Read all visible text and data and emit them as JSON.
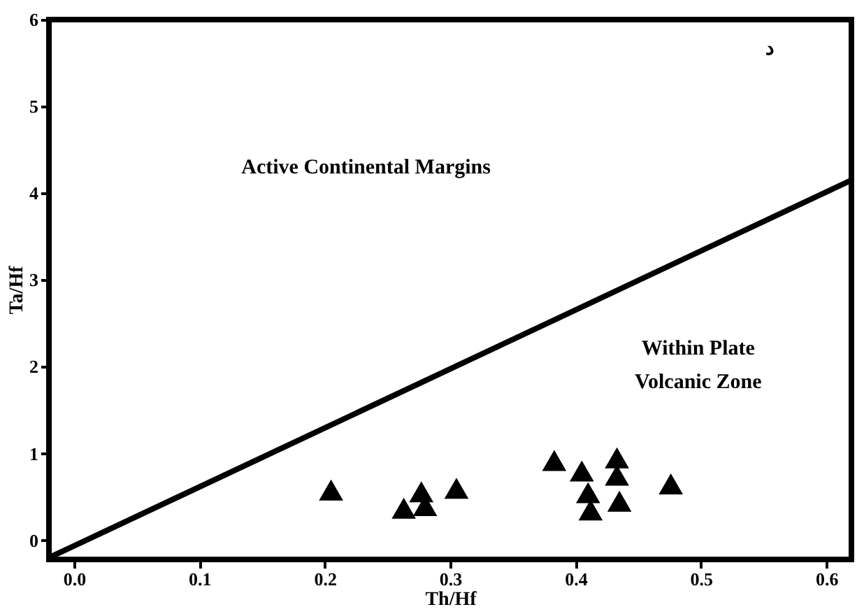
{
  "chart_data": {
    "type": "scatter",
    "xlabel": "Th/Hf",
    "ylabel": "Ta/Hf",
    "xlim": [
      -0.02,
      0.62
    ],
    "ylim": [
      -0.22,
      6
    ],
    "xticks": [
      {
        "value": 0,
        "label": "0.0"
      },
      0.1,
      0.2,
      0.3,
      0.4,
      0.5,
      0.6
    ],
    "yticks": [
      0,
      1,
      2,
      3,
      4,
      5,
      6
    ],
    "grid": false,
    "series": [
      {
        "type": "line",
        "color": "#000000",
        "line_style": "solid",
        "x": [
          -0.02,
          0.62
        ],
        "values": [
          -0.2,
          4.15
        ]
      },
      {
        "color": "#000000",
        "marker": "triangle",
        "x": [
          0.205,
          0.263,
          0.277,
          0.28,
          0.305,
          0.383,
          0.405,
          0.41,
          0.412,
          0.433,
          0.433,
          0.435,
          0.476
        ],
        "values": [
          0.58,
          0.37,
          0.56,
          0.4,
          0.6,
          0.92,
          0.8,
          0.55,
          0.35,
          0.95,
          0.75,
          0.45,
          0.65
        ]
      }
    ],
    "annotations": [
      "Active Continental Margins",
      "Within Plate\nVolcanic Zone",
      "د"
    ]
  }
}
